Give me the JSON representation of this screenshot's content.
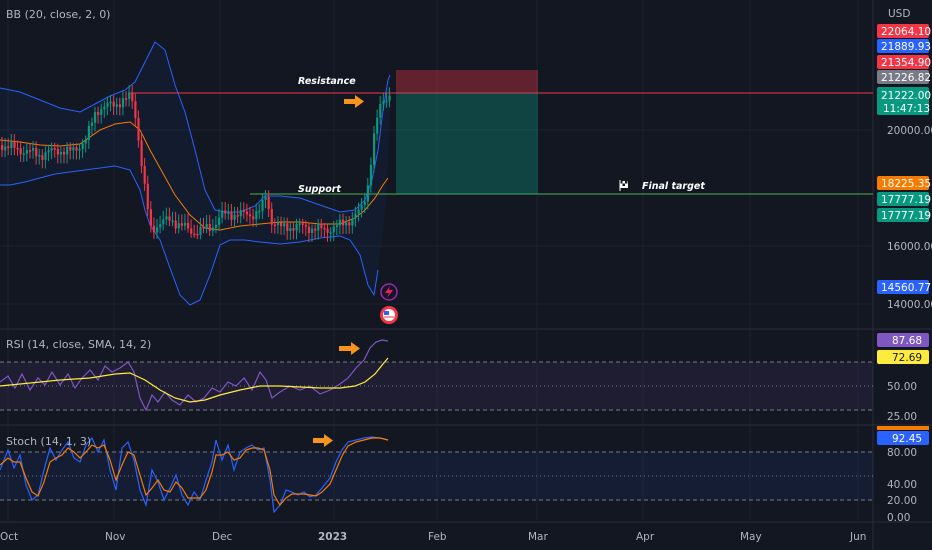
{
  "header": {
    "currency": "USD"
  },
  "indicators": {
    "bb": "BB (20, close, 2, 0)",
    "rsi": "RSI (14, close, SMA, 14, 2)",
    "stoch": "Stoch (14, 1, 3)"
  },
  "annotations": {
    "resistance": "Resistance",
    "support": "Support",
    "final_target": "Final target"
  },
  "price_axis": {
    "ticks": [
      "20000.00",
      "16000.00",
      "14000.00"
    ],
    "tags": [
      {
        "text": "22064.10",
        "color": "#f23645"
      },
      {
        "text": "21889.93",
        "color": "#2962ff"
      },
      {
        "text": "21354.90",
        "color": "#f23645"
      },
      {
        "text": "21226.82",
        "color": "#787b86"
      },
      {
        "text": "21222.00",
        "color": "#089981"
      },
      {
        "text": "11:47:13",
        "color": "#089981"
      },
      {
        "text": "18225.35",
        "color": "#f57c00"
      },
      {
        "text": "17777.19",
        "color": "#089981"
      },
      {
        "text": "17777.19",
        "color": "#089981"
      },
      {
        "text": "14560.77",
        "color": "#2962ff"
      }
    ]
  },
  "rsi_axis": {
    "ticks": [
      "50.00",
      "25.00"
    ],
    "tags": [
      {
        "text": "87.68",
        "color": "#7e57c2"
      },
      {
        "text": "72.69",
        "color": "#ffeb3b"
      }
    ]
  },
  "stoch_axis": {
    "ticks": [
      "80.00",
      "40.00",
      "20.00",
      "0.00"
    ],
    "tags": [
      {
        "text": "92.45",
        "color": "#2962ff"
      }
    ]
  },
  "time_axis": [
    "Oct",
    "Nov",
    "Dec",
    "2023",
    "Feb",
    "Mar",
    "Apr",
    "May",
    "Jun"
  ],
  "colors": {
    "background": "#131722",
    "bb_band": "#2962ff",
    "bb_basis": "#f57c00",
    "rsi_line": "#7e57c2",
    "rsi_ma": "#ffeb3b",
    "up": "#089981",
    "down": "#f23645"
  }
}
